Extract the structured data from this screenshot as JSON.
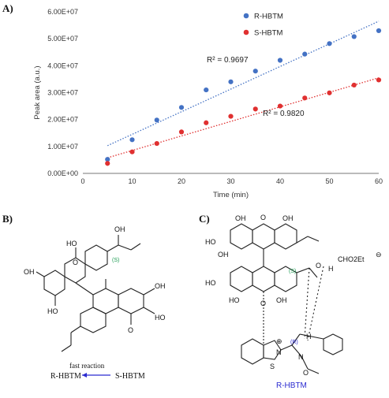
{
  "panel_a": {
    "label": "A)",
    "chart_data": {
      "type": "scatter",
      "xlabel": "Time (min)",
      "ylabel": "Peak area (a.u.)",
      "xlim": [
        0,
        60
      ],
      "ylim": [
        0,
        60000000
      ],
      "x_ticks": [
        "0",
        "10",
        "20",
        "30",
        "40",
        "50",
        "60"
      ],
      "y_ticks": [
        "0.00E+00",
        "1.00E+07",
        "2.00E+07",
        "3.00E+07",
        "4.00E+07",
        "5.00E+07",
        "6.00E+07"
      ],
      "grid": false,
      "legend_position": "top-right",
      "series": [
        {
          "name": "R-HBTM",
          "color": "#4472c4",
          "x": [
            5,
            10,
            15,
            20,
            25,
            30,
            35,
            40,
            45,
            50,
            55,
            60
          ],
          "y": [
            5200000,
            12500000,
            19800000,
            24500000,
            31000000,
            34000000,
            38000000,
            42000000,
            44300000,
            48200000,
            50800000,
            53000000
          ],
          "trendline": {
            "r2": "R² = 0.9697",
            "y_start": 10300000,
            "y_end": 56500000
          }
        },
        {
          "name": "S-HBTM",
          "color": "#e03030",
          "x": [
            5,
            10,
            15,
            20,
            25,
            30,
            35,
            40,
            45,
            50,
            55,
            60
          ],
          "y": [
            3700000,
            8000000,
            11100000,
            15400000,
            18800000,
            21200000,
            23900000,
            25000000,
            28000000,
            29900000,
            32800000,
            34700000
          ],
          "trendline": {
            "r2": "R² = 0.9820",
            "y_start": 5800000,
            "y_end": 35500000
          }
        }
      ]
    }
  },
  "panel_b": {
    "label": "B)",
    "oh_labels": [
      "HO",
      "OH",
      "OH",
      "HO",
      "OH",
      "HO"
    ],
    "o_labels": [
      "O",
      "O"
    ],
    "stereo": "(S)",
    "reaction": {
      "left": "R-HBTM",
      "arrow_label": "fast reaction",
      "right": "S-HBTM"
    },
    "colors": {
      "left": "#2b2bd0",
      "right": "#e02020",
      "arrow": "#2b2bd0",
      "stereo": "#1a9a50"
    }
  },
  "panel_c": {
    "label": "C)",
    "oh_labels": [
      "OH",
      "OH",
      "HO",
      "OH",
      "HO",
      "OH",
      "HO"
    ],
    "o_labels": [
      "O",
      "O"
    ],
    "stereo_s": "(S)",
    "stereo_r": "(R)",
    "counterion": "CHO2Et",
    "charge": "⊖",
    "cation": "⊕",
    "h_bond": "H",
    "h_label": "H",
    "ring_atoms": {
      "n1": "N",
      "n2": "N",
      "s": "S"
    },
    "carbonyl": "O",
    "catalyst": "R-HBTM",
    "colors": {
      "catalyst": "#2b2bd0",
      "stereo_s": "#1a9a50",
      "stereo_r": "#2b2bd0"
    }
  }
}
